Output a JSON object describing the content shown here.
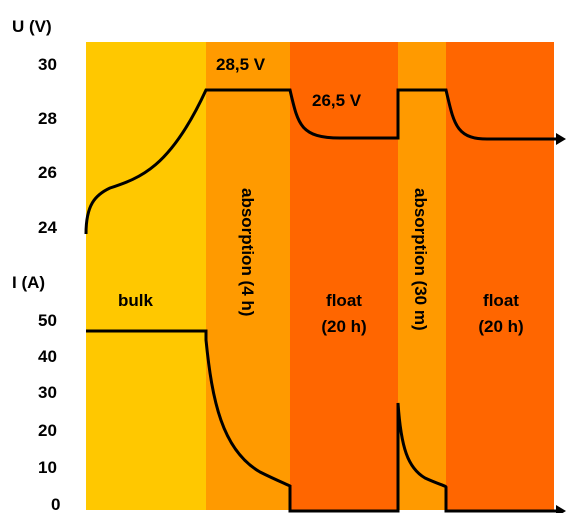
{
  "colors": {
    "bulk": "#ffc800",
    "absorption": "#ff9a00",
    "float": "#ff6600",
    "curve": "#000000"
  },
  "axes": {
    "voltage_title": "U (V)",
    "voltage_ticks": [
      "30",
      "28",
      "26",
      "24"
    ],
    "current_title": "I (A)",
    "current_ticks": [
      "50",
      "40",
      "30",
      "20",
      "10",
      "0"
    ]
  },
  "phases": [
    {
      "key": "bulk",
      "line1": "bulk",
      "line2": "",
      "vertical": false,
      "color_key": "bulk"
    },
    {
      "key": "absorption-1",
      "line1": "absorption (4 h)",
      "line2": "",
      "vertical": true,
      "color_key": "absorption"
    },
    {
      "key": "float-1",
      "line1": "float",
      "line2": "(20 h)",
      "vertical": false,
      "color_key": "float"
    },
    {
      "key": "absorption-2",
      "line1": "absorption (30 m)",
      "line2": "",
      "vertical": true,
      "color_key": "absorption"
    },
    {
      "key": "float-2",
      "line1": "float",
      "line2": "(20 h)",
      "vertical": false,
      "color_key": "float"
    }
  ],
  "annotations": {
    "absorption_voltage": "28,5 V",
    "float_voltage": "26,5 V"
  }
}
